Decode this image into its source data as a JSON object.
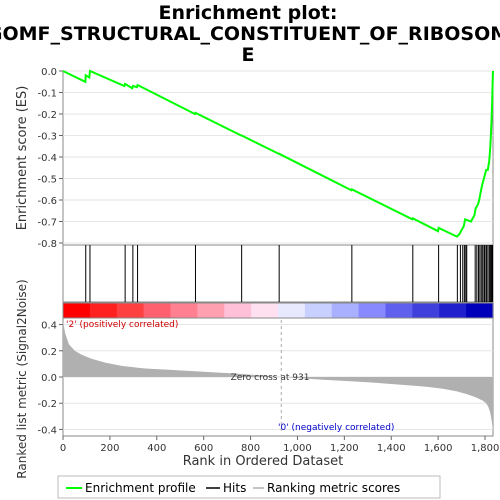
{
  "title_lines": [
    "Enrichment plot:",
    "GOMF_STRUCTURAL_CONSTITUENT_OF_RIBOSOM",
    "E"
  ],
  "chart_data": {
    "type": "line",
    "es_panel": {
      "ylabel": "Enrichment score (ES)",
      "ylim": [
        -0.8,
        0.0
      ],
      "yticks": [
        0.0,
        -0.1,
        -0.2,
        -0.3,
        -0.4,
        -0.5,
        -0.6,
        -0.7,
        -0.8
      ],
      "ytick_labels": [
        "0.0",
        "-0.1",
        "-0.2",
        "-0.3",
        "-0.4",
        "-0.5",
        "-0.6",
        "-0.7",
        "-0.8"
      ],
      "series": [
        {
          "name": "Enrichment profile",
          "color": "#00ff00",
          "x": [
            0,
            95,
            97,
            112,
            115,
            262,
            265,
            295,
            298,
            315,
            318,
            563,
            565,
            760,
            762,
            920,
            922,
            1230,
            1232,
            1490,
            1492,
            1600,
            1602,
            1680,
            1690,
            1700,
            1710,
            1715,
            1740,
            1755,
            1760,
            1770,
            1775,
            1782,
            1788,
            1795,
            1805,
            1812,
            1818,
            1822,
            1825,
            1828,
            1830,
            1832,
            1833,
            1834
          ],
          "y": [
            0.0,
            -0.05,
            -0.02,
            -0.03,
            0.0,
            -0.07,
            -0.06,
            -0.08,
            -0.07,
            -0.075,
            -0.065,
            -0.2,
            -0.195,
            -0.3,
            -0.3,
            -0.385,
            -0.385,
            -0.555,
            -0.55,
            -0.69,
            -0.685,
            -0.745,
            -0.73,
            -0.77,
            -0.76,
            -0.74,
            -0.72,
            -0.69,
            -0.7,
            -0.67,
            -0.64,
            -0.62,
            -0.6,
            -0.56,
            -0.53,
            -0.5,
            -0.46,
            -0.46,
            -0.42,
            -0.36,
            -0.3,
            -0.22,
            -0.15,
            -0.08,
            -0.03,
            0.0
          ]
        }
      ]
    },
    "hits": {
      "name": "Hits",
      "color": "#000000",
      "x": [
        97,
        115,
        265,
        298,
        318,
        565,
        762,
        922,
        1232,
        1492,
        1602,
        1682,
        1695,
        1705,
        1712,
        1718,
        1722,
        1758,
        1765,
        1772,
        1778,
        1784,
        1790,
        1796,
        1800,
        1806,
        1812,
        1818,
        1822,
        1826,
        1830,
        1832
      ]
    },
    "heatmap_bar": {
      "colors": [
        "#ff0000",
        "#ff2020",
        "#ff4040",
        "#ff6070",
        "#ff8090",
        "#ffa0b0",
        "#ffc0d8",
        "#ffe0f0",
        "#e8e8ff",
        "#c8d0ff",
        "#a8b0ff",
        "#8888ff",
        "#6060ee",
        "#4040dd",
        "#2020cc",
        "#0000bb"
      ],
      "label_pos": "'2' (positively correlated)",
      "label_neg": "'0' (negatively correlated)",
      "color_pos": "#cc0000",
      "color_neg": "#0000cc"
    },
    "metric_panel": {
      "ylabel": "Ranked list metric (Signal2Noise)",
      "xlabel": "Rank in Ordered Dataset",
      "ylim": [
        -0.45,
        0.45
      ],
      "yticks": [
        0.4,
        0.2,
        0.0,
        -0.2,
        -0.4
      ],
      "ytick_labels": [
        "0.4",
        "0.2",
        "0.0",
        "-0.2",
        "-0.4"
      ],
      "xlim": [
        0,
        1834
      ],
      "xticks": [
        0,
        200,
        400,
        600,
        800,
        1000,
        1200,
        1400,
        1600,
        1800
      ],
      "xtick_labels": [
        "0",
        "200",
        "400",
        "600",
        "800",
        "1,000",
        "1,200",
        "1,400",
        "1,600",
        "1,800"
      ],
      "zero_cross_label": "Zero cross at 931",
      "zero_cross": 931,
      "fill_color": "#b0b0b0",
      "x": [
        0,
        10,
        25,
        50,
        80,
        120,
        180,
        250,
        350,
        450,
        600,
        750,
        931,
        1100,
        1300,
        1450,
        1550,
        1620,
        1680,
        1720,
        1760,
        1790,
        1805,
        1815,
        1822,
        1828,
        1834
      ],
      "y": [
        0.42,
        0.33,
        0.25,
        0.2,
        0.17,
        0.14,
        0.11,
        0.085,
        0.065,
        0.055,
        0.04,
        0.025,
        0.0,
        -0.02,
        -0.04,
        -0.06,
        -0.075,
        -0.09,
        -0.11,
        -0.13,
        -0.155,
        -0.18,
        -0.2,
        -0.23,
        -0.27,
        -0.33,
        -0.41
      ]
    }
  },
  "legend": {
    "items": [
      {
        "label": "Enrichment profile",
        "color": "#00ff00"
      },
      {
        "label": "Hits",
        "color": "#000000"
      },
      {
        "label": "Ranking metric scores",
        "color": "#b0b0b0"
      }
    ]
  }
}
